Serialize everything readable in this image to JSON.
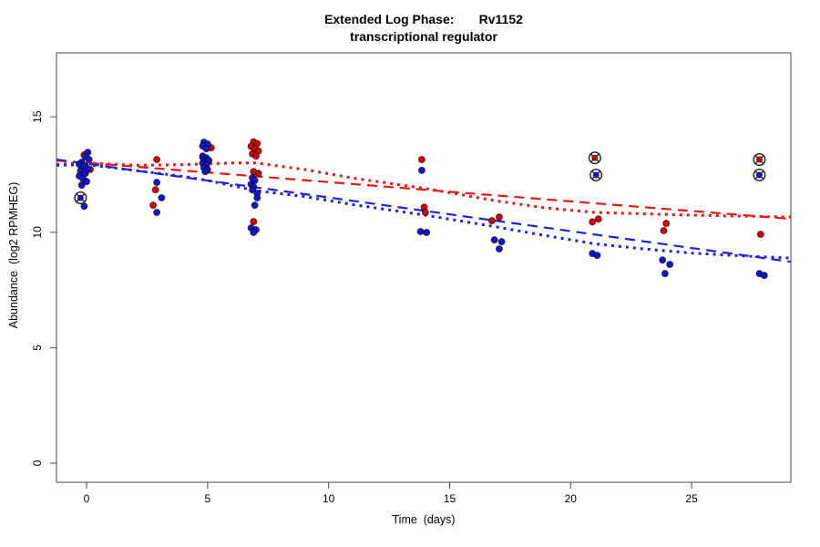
{
  "chart_data": {
    "type": "scatter",
    "title": "Extended Log Phase:       Rv1152",
    "subtitle": "transcriptional regulator",
    "xlabel": "Time  (days)",
    "ylabel": "Abundance  (log2 RPMHEG)",
    "xlim": [
      -1.243,
      29.1
    ],
    "ylim": [
      -0.829,
      17.77
    ],
    "xticks": [
      0,
      5,
      10,
      15,
      20,
      25
    ],
    "yticks": [
      0,
      5,
      10,
      15
    ],
    "grid": false,
    "legend": "none",
    "colors": {
      "red_point": "#d40000",
      "blue_point": "#1616c8",
      "red_line": "#e81616",
      "blue_line": "#2020e0",
      "marker_outline": "#1a1a1a",
      "axis": "#4a4a4a"
    },
    "series": [
      {
        "name": "red-points",
        "color_key": "red_point",
        "points": [
          [
            -0.1,
            13.35
          ],
          [
            0.15,
            12.72
          ],
          [
            2.9,
            13.15
          ],
          [
            2.85,
            11.84
          ],
          [
            2.75,
            11.17
          ],
          [
            5.15,
            13.66
          ],
          [
            4.8,
            13.26
          ],
          [
            6.9,
            13.92
          ],
          [
            7.05,
            13.84
          ],
          [
            6.8,
            13.72
          ],
          [
            6.95,
            13.62
          ],
          [
            7.1,
            13.52
          ],
          [
            6.85,
            13.4
          ],
          [
            7.0,
            13.3
          ],
          [
            6.9,
            12.63
          ],
          [
            7.1,
            12.55
          ],
          [
            6.9,
            10.46
          ],
          [
            13.85,
            13.15
          ],
          [
            13.95,
            11.09
          ],
          [
            14.0,
            10.86
          ],
          [
            17.05,
            10.66
          ],
          [
            16.75,
            10.5
          ],
          [
            20.9,
            10.45
          ],
          [
            21.15,
            10.57
          ],
          [
            23.95,
            10.38
          ],
          [
            23.85,
            10.07
          ],
          [
            27.85,
            9.91
          ]
        ]
      },
      {
        "name": "blue-points",
        "color_key": "blue_point",
        "points": [
          [
            0.05,
            13.46
          ],
          [
            -0.05,
            13.27
          ],
          [
            0.1,
            13.15
          ],
          [
            -0.2,
            13.03
          ],
          [
            -0.3,
            12.95
          ],
          [
            -0.1,
            12.87
          ],
          [
            0.05,
            12.75
          ],
          [
            -0.25,
            12.67
          ],
          [
            -0.05,
            12.55
          ],
          [
            -0.3,
            12.44
          ],
          [
            -0.15,
            12.32
          ],
          [
            0.0,
            12.2
          ],
          [
            -0.2,
            12.04
          ],
          [
            -0.1,
            11.13
          ],
          [
            2.9,
            12.16
          ],
          [
            3.1,
            11.49
          ],
          [
            2.9,
            10.86
          ],
          [
            4.85,
            13.9
          ],
          [
            5.0,
            13.82
          ],
          [
            4.8,
            13.74
          ],
          [
            4.95,
            13.62
          ],
          [
            4.8,
            13.3
          ],
          [
            4.95,
            13.22
          ],
          [
            4.85,
            13.11
          ],
          [
            5.05,
            13.11
          ],
          [
            4.8,
            12.99
          ],
          [
            4.95,
            12.91
          ],
          [
            4.85,
            12.79
          ],
          [
            5.0,
            12.71
          ],
          [
            4.9,
            12.63
          ],
          [
            6.85,
            12.36
          ],
          [
            6.95,
            12.24
          ],
          [
            6.8,
            12.08
          ],
          [
            6.9,
            11.96
          ],
          [
            6.85,
            11.84
          ],
          [
            7.05,
            11.69
          ],
          [
            7.05,
            11.49
          ],
          [
            6.95,
            11.17
          ],
          [
            6.8,
            10.19
          ],
          [
            7.0,
            10.11
          ],
          [
            6.9,
            9.99
          ],
          [
            13.85,
            12.68
          ],
          [
            13.8,
            10.03
          ],
          [
            14.05,
            9.99
          ],
          [
            16.85,
            9.67
          ],
          [
            17.15,
            9.59
          ],
          [
            17.05,
            9.28
          ],
          [
            20.9,
            9.08
          ],
          [
            21.1,
            9.0
          ],
          [
            23.8,
            8.8
          ],
          [
            24.1,
            8.61
          ],
          [
            23.9,
            8.21
          ],
          [
            27.8,
            8.21
          ],
          [
            28.0,
            8.13
          ]
        ]
      },
      {
        "name": "circled-red-reference",
        "color_key": "red_point",
        "marker": "circle-x",
        "points": [
          [
            21.0,
            13.22
          ],
          [
            27.8,
            13.15
          ]
        ]
      },
      {
        "name": "circled-blue-reference",
        "color_key": "blue_point",
        "marker": "circle-x",
        "points": [
          [
            -0.25,
            11.49
          ],
          [
            21.05,
            12.48
          ],
          [
            27.8,
            12.48
          ]
        ]
      }
    ],
    "trend_lines": [
      {
        "name": "red-dashed-linear-fit",
        "color_key": "red_line",
        "style": "dashed",
        "points": [
          [
            -1.243,
            13.11
          ],
          [
            29.1,
            10.58
          ]
        ]
      },
      {
        "name": "blue-dashed-linear-fit",
        "color_key": "blue_line",
        "style": "dashed",
        "points": [
          [
            -1.243,
            13.15
          ],
          [
            29.1,
            8.72
          ]
        ]
      },
      {
        "name": "red-dotted-smooth-fit",
        "color_key": "red_line",
        "style": "dotted",
        "points": [
          [
            -1.243,
            12.95
          ],
          [
            0,
            13.0
          ],
          [
            2,
            12.9
          ],
          [
            4,
            12.93
          ],
          [
            6,
            13.0
          ],
          [
            7,
            13.0
          ],
          [
            9,
            12.72
          ],
          [
            11,
            12.35
          ],
          [
            14,
            11.9
          ],
          [
            17,
            11.35
          ],
          [
            19,
            11.05
          ],
          [
            21,
            10.86
          ],
          [
            23,
            10.8
          ],
          [
            25,
            10.74
          ],
          [
            27,
            10.7
          ],
          [
            29.1,
            10.66
          ]
        ]
      },
      {
        "name": "blue-dotted-smooth-fit",
        "color_key": "blue_line",
        "style": "dotted",
        "points": [
          [
            -1.243,
            12.9
          ],
          [
            0,
            12.93
          ],
          [
            2,
            12.68
          ],
          [
            4,
            12.42
          ],
          [
            5,
            12.24
          ],
          [
            7,
            11.8
          ],
          [
            9,
            11.55
          ],
          [
            11,
            11.2
          ],
          [
            14,
            10.74
          ],
          [
            17,
            10.22
          ],
          [
            19,
            9.85
          ],
          [
            21,
            9.5
          ],
          [
            23,
            9.28
          ],
          [
            25,
            9.1
          ],
          [
            27,
            8.98
          ],
          [
            29.1,
            8.88
          ]
        ]
      }
    ]
  }
}
